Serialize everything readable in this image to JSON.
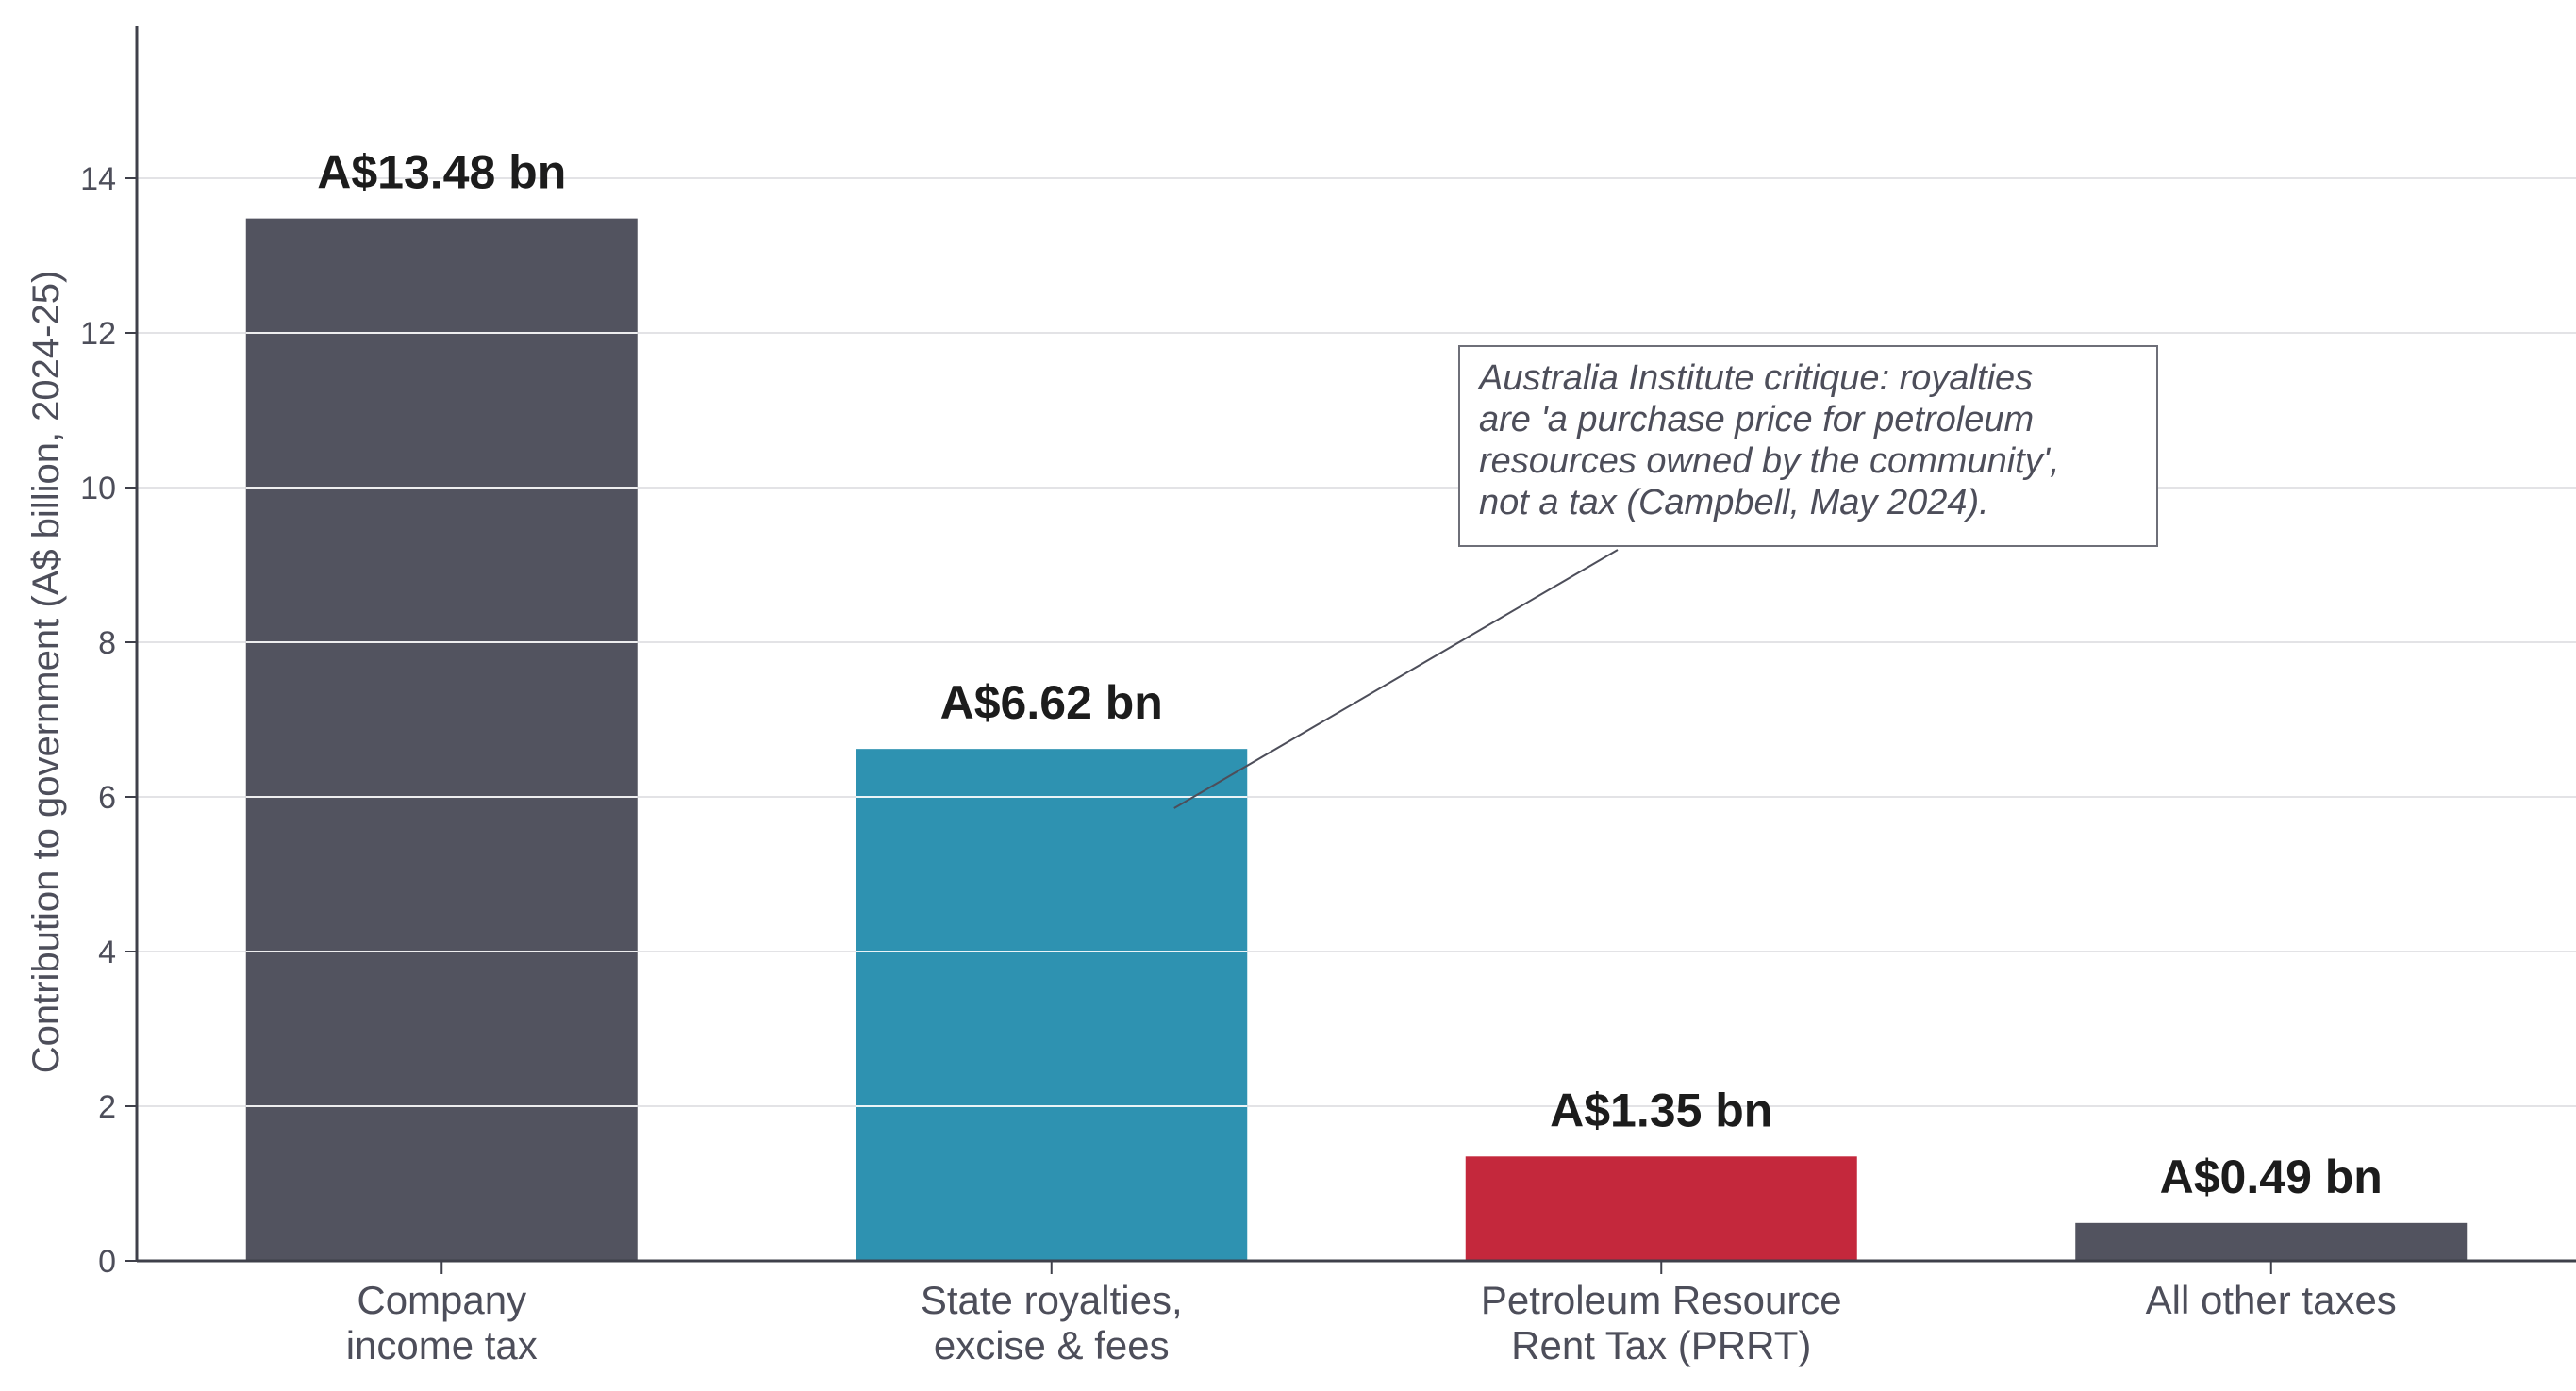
{
  "chart_data": {
    "type": "bar",
    "categories": [
      [
        "Company",
        "income tax"
      ],
      [
        "State royalties,",
        "excise & fees"
      ],
      [
        "Petroleum Resource",
        "Rent Tax (PRRT)"
      ],
      [
        "All other taxes"
      ]
    ],
    "values": [
      13.48,
      6.62,
      1.35,
      0.49
    ],
    "data_labels": [
      "A$13.48 bn",
      "A$6.62 bn",
      "A$1.35 bn",
      "A$0.49 bn"
    ],
    "colors": [
      "#52535f",
      "#2e92b1",
      "#c4283c",
      "#52535f"
    ],
    "ylabel": "Contribution to government (A$ billion, 2024-25)",
    "xlabel": "",
    "title": "",
    "ylim": [
      0,
      16
    ],
    "yticks": [
      0,
      2,
      4,
      6,
      8,
      10,
      12,
      14
    ],
    "grid": true,
    "annotation": {
      "target_category_index": 1,
      "target_value": 6.0,
      "lines": [
        "Australia Institute critique: royalties",
        "are 'a purchase price for petroleum",
        "resources owned by the community',",
        "not a tax (Campbell, May 2024)."
      ]
    }
  }
}
